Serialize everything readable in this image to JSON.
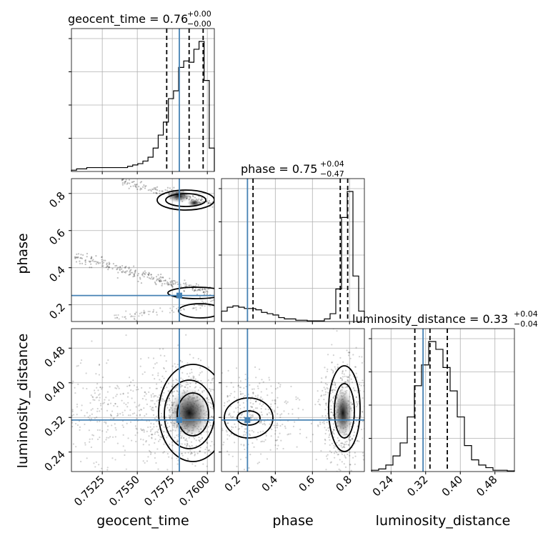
{
  "chart_data": {
    "type": "corner",
    "parameters": [
      "geocent_time",
      "phase",
      "luminosity_distance"
    ],
    "truths": {
      "geocent_time": 0.758,
      "phase": 0.25,
      "luminosity_distance": 0.314
    },
    "titles": [
      {
        "param": "geocent_time",
        "label": "geocent_time = 0.76",
        "sup": "+0.00",
        "sub": "−0.00"
      },
      {
        "param": "phase",
        "label": "phase = 0.75",
        "sup": "+0.04",
        "sub": "−0.47"
      },
      {
        "param": "luminosity_distance",
        "label": "luminosity_distance = 0.33",
        "sup": "+0.04",
        "sub": "−0.04"
      }
    ],
    "axes": {
      "geocent_time": {
        "range": [
          0.7503,
          0.7605
        ],
        "ticks": [
          "0.7525",
          "0.7550",
          "0.7575",
          "0.7600"
        ]
      },
      "phase": {
        "range": [
          0.11,
          0.88
        ],
        "ticks": [
          "0.2",
          "0.4",
          "0.6",
          "0.8"
        ]
      },
      "luminosity_distance": {
        "range": [
          0.195,
          0.525
        ],
        "ticks": [
          "0.24",
          "0.32",
          "0.40",
          "0.48"
        ]
      }
    },
    "quantiles": {
      "geocent_time": [
        0.7571,
        0.7587,
        0.7597
      ],
      "phase": [
        0.28,
        0.75,
        0.79
      ],
      "luminosity_distance": [
        0.295,
        0.33,
        0.37
      ]
    },
    "histograms": {
      "geocent_time": [
        1,
        2,
        2,
        3,
        3,
        3,
        3,
        3,
        3,
        3,
        3,
        4,
        5,
        6,
        8,
        11,
        18,
        28,
        38,
        56,
        62,
        80,
        85,
        84,
        94,
        100,
        70,
        18
      ],
      "phase": [
        8,
        11,
        12,
        11,
        10,
        10,
        9,
        7,
        6,
        5,
        3,
        2,
        2,
        1,
        1,
        0.5,
        0.5,
        0.5,
        2,
        6,
        25,
        80,
        100,
        35,
        8
      ],
      "luminosity_distance": [
        1,
        2,
        5,
        12,
        22,
        42,
        66,
        82,
        100,
        94,
        80,
        62,
        42,
        20,
        9,
        5,
        3,
        1,
        1,
        0.5
      ]
    },
    "grid": true,
    "labels": {
      "x": [
        "geocent_time",
        "phase",
        "luminosity_distance"
      ],
      "y": [
        "phase",
        "luminosity_distance"
      ]
    }
  }
}
